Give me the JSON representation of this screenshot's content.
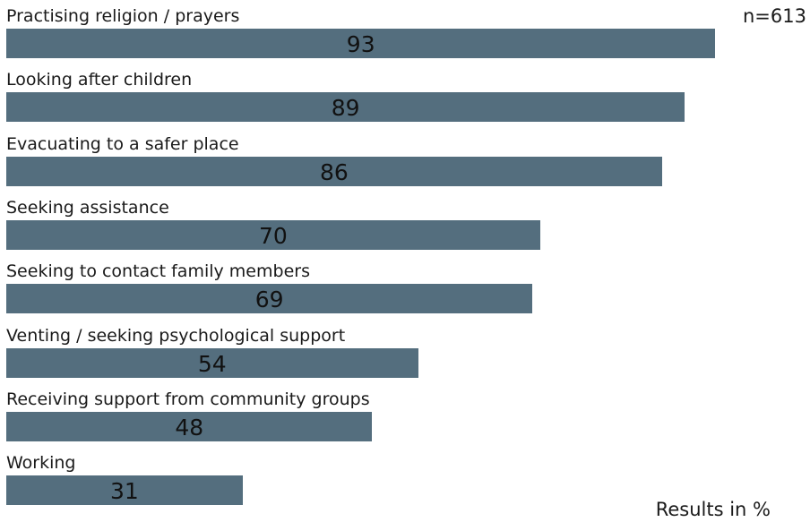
{
  "chart_data": {
    "type": "bar",
    "orientation": "horizontal",
    "categories": [
      "Practising religion / prayers",
      "Looking after children",
      "Evacuating to a safer place",
      "Seeking assistance",
      "Seeking to contact family members",
      "Venting / seeking psychological support",
      "Receiving support from community groups",
      "Working"
    ],
    "values": [
      93,
      89,
      86,
      70,
      69,
      54,
      48,
      31
    ],
    "xlim": [
      0,
      100
    ],
    "grid": false,
    "legend": "none",
    "bar_color": "#546e7e",
    "sample_note": "n=613",
    "units_note": "Results in %"
  }
}
